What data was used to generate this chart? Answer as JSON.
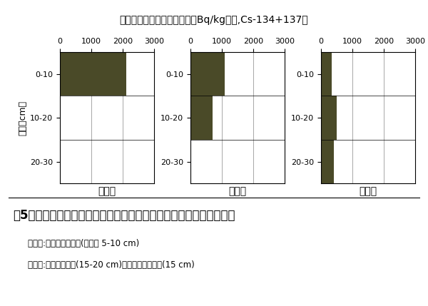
{
  "title": "土壌の放射性セシウム含量（Bq/kg乾土,Cs-134+137）",
  "panels": [
    {
      "label": "浅耕区",
      "values": [
        2100,
        0,
        0
      ]
    },
    {
      "label": "慣行区",
      "values": [
        1100,
        700,
        0
      ]
    },
    {
      "label": "深耕区",
      "values": [
        350,
        500,
        420
      ]
    }
  ],
  "xlim": [
    0,
    3000
  ],
  "xticks": [
    0,
    1000,
    2000,
    3000
  ],
  "bar_color": "#4a4a28",
  "ylabel": "深さ（cm）",
  "depth_labels": [
    "0-10",
    "10-20",
    "20-30"
  ],
  "figure_caption": "図5　耕起方法の違いが放射性セシウムの土壌垂直分布に及ぼす影響",
  "note1": "浅耕区:浅層ロータリ耕(耕起深 5-10 cm)",
  "note2": "慣行区:慣行プラウ耕(15-20 cm)＋慣行ロータリ耕(15 cm)",
  "background_color": "#ffffff",
  "title_fontsize": 10,
  "caption_fontsize": 12,
  "note_fontsize": 8.5,
  "tick_fontsize": 8,
  "axis_label_fontsize": 9,
  "panel_label_fontsize": 10,
  "depth_label_fontsize": 8
}
